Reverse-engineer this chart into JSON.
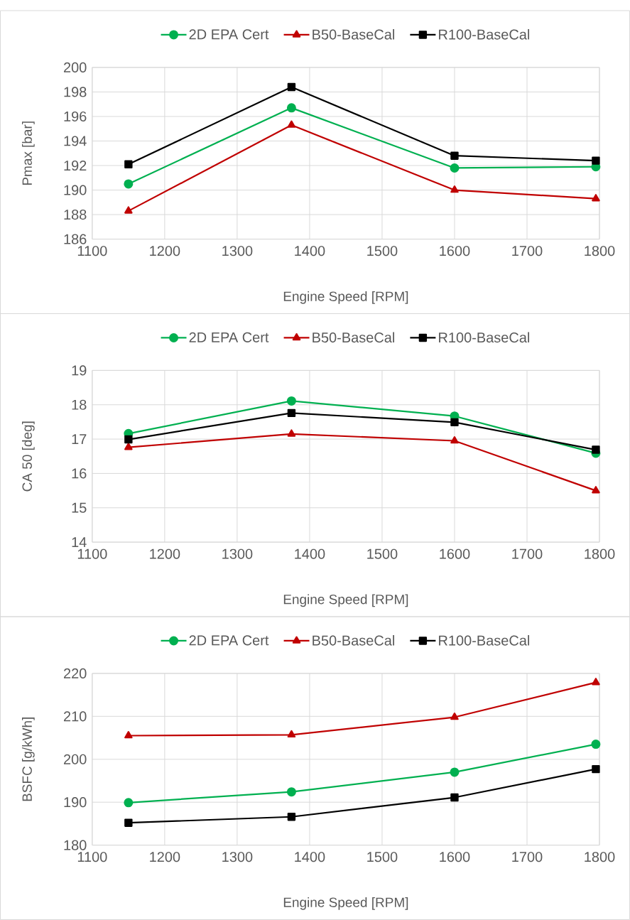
{
  "chart_data": [
    {
      "type": "line",
      "x": [
        1150,
        1375,
        1600,
        1795
      ],
      "xlim": [
        1100,
        1800
      ],
      "xticks": [
        1100,
        1200,
        1300,
        1400,
        1500,
        1600,
        1700,
        1800
      ],
      "ylim": [
        186,
        200
      ],
      "yticks": [
        186,
        188,
        190,
        192,
        194,
        196,
        198,
        200
      ],
      "xlabel": "Engine Speed [RPM]",
      "ylabel": "Pmax [bar]",
      "grid": true,
      "legend": "top",
      "series": [
        {
          "name": "2D EPA Cert",
          "color": "#00b050",
          "marker": "circle",
          "values": [
            190.5,
            196.7,
            191.8,
            191.9
          ]
        },
        {
          "name": "B50-BaseCal",
          "color": "#c00000",
          "marker": "triangle",
          "values": [
            188.3,
            195.3,
            190.0,
            189.3
          ]
        },
        {
          "name": "R100-BaseCal",
          "color": "#000000",
          "marker": "square",
          "values": [
            192.1,
            198.4,
            192.8,
            192.4
          ]
        }
      ]
    },
    {
      "type": "line",
      "x": [
        1150,
        1375,
        1600,
        1795
      ],
      "xlim": [
        1100,
        1800
      ],
      "xticks": [
        1100,
        1200,
        1300,
        1400,
        1500,
        1600,
        1700,
        1800
      ],
      "ylim": [
        14,
        19
      ],
      "yticks": [
        14,
        15,
        16,
        17,
        18,
        19
      ],
      "xlabel": "Engine Speed [RPM]",
      "ylabel": "CA 50 [deg]",
      "grid": true,
      "legend": "top",
      "series": [
        {
          "name": "2D EPA Cert",
          "color": "#00b050",
          "marker": "circle",
          "values": [
            17.16,
            18.11,
            17.67,
            16.59
          ]
        },
        {
          "name": "B50-BaseCal",
          "color": "#c00000",
          "marker": "triangle",
          "values": [
            16.76,
            17.15,
            16.95,
            15.5
          ]
        },
        {
          "name": "R100-BaseCal",
          "color": "#000000",
          "marker": "square",
          "values": [
            16.99,
            17.76,
            17.49,
            16.69
          ]
        }
      ]
    },
    {
      "type": "line",
      "x": [
        1150,
        1375,
        1600,
        1795
      ],
      "xlim": [
        1100,
        1800
      ],
      "xticks": [
        1100,
        1200,
        1300,
        1400,
        1500,
        1600,
        1700,
        1800
      ],
      "ylim": [
        180,
        220
      ],
      "yticks": [
        180,
        190,
        200,
        210,
        220
      ],
      "xlabel": "Engine Speed [RPM]",
      "ylabel": "BSFC [g/kWh]",
      "grid": true,
      "legend": "top",
      "series": [
        {
          "name": "2D EPA Cert",
          "color": "#00b050",
          "marker": "circle",
          "values": [
            189.9,
            192.4,
            197.0,
            203.5
          ]
        },
        {
          "name": "B50-BaseCal",
          "color": "#c00000",
          "marker": "triangle",
          "values": [
            205.5,
            205.7,
            209.8,
            217.9
          ]
        },
        {
          "name": "R100-BaseCal",
          "color": "#000000",
          "marker": "square",
          "values": [
            185.2,
            186.6,
            191.1,
            197.7
          ]
        }
      ]
    }
  ]
}
